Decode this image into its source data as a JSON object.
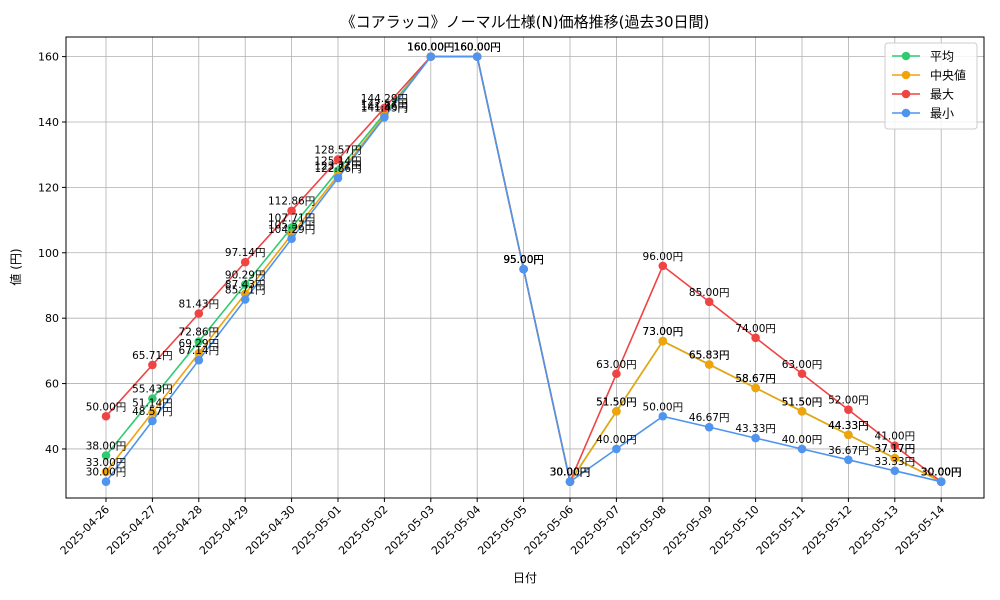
{
  "chart_data": {
    "type": "line",
    "title": "《コアラッコ》ノーマル仕様(N)価格推移(過去30日間)",
    "xlabel": "日付",
    "ylabel": "値 (円)",
    "label_suffix": "円",
    "categories": [
      "2025-04-26",
      "2025-04-27",
      "2025-04-28",
      "2025-04-29",
      "2025-04-30",
      "2025-05-01",
      "2025-05-02",
      "2025-05-03",
      "2025-05-04",
      "2025-05-05",
      "2025-05-06",
      "2025-05-07",
      "2025-05-08",
      "2025-05-09",
      "2025-05-10",
      "2025-05-11",
      "2025-05-12",
      "2025-05-13",
      "2025-05-14"
    ],
    "yticks": [
      40,
      60,
      80,
      100,
      120,
      140,
      160
    ],
    "ylim": [
      25,
      166
    ],
    "grid": true,
    "legend_position": "top-right",
    "series": [
      {
        "name": "平均",
        "color": "#2ecc71",
        "values": [
          38.0,
          55.43,
          72.86,
          90.29,
          107.71,
          125.14,
          142.57,
          160.0,
          160.0,
          95.0,
          30.0,
          51.5,
          73.0,
          65.83,
          58.67,
          51.5,
          44.33,
          37.17,
          30.0
        ]
      },
      {
        "name": "中央値",
        "color": "#f0a30a",
        "values": [
          33.0,
          51.14,
          69.29,
          87.43,
          105.57,
          123.71,
          141.86,
          160.0,
          160.0,
          95.0,
          30.0,
          51.5,
          73.0,
          65.83,
          58.67,
          51.5,
          44.33,
          37.17,
          30.0
        ]
      },
      {
        "name": "最大",
        "color": "#ef4444",
        "values": [
          50.0,
          65.71,
          81.43,
          97.14,
          112.86,
          128.57,
          144.29,
          160.0,
          160.0,
          95.0,
          30.0,
          63.0,
          96.0,
          85.0,
          74.0,
          63.0,
          52.0,
          41.0,
          30.0
        ]
      },
      {
        "name": "最小",
        "color": "#4f94ef",
        "values": [
          30.0,
          48.57,
          67.14,
          85.71,
          104.29,
          122.86,
          141.43,
          160.0,
          160.0,
          95.0,
          30.0,
          40.0,
          50.0,
          46.67,
          43.33,
          40.0,
          36.67,
          33.33,
          30.0
        ]
      }
    ]
  }
}
